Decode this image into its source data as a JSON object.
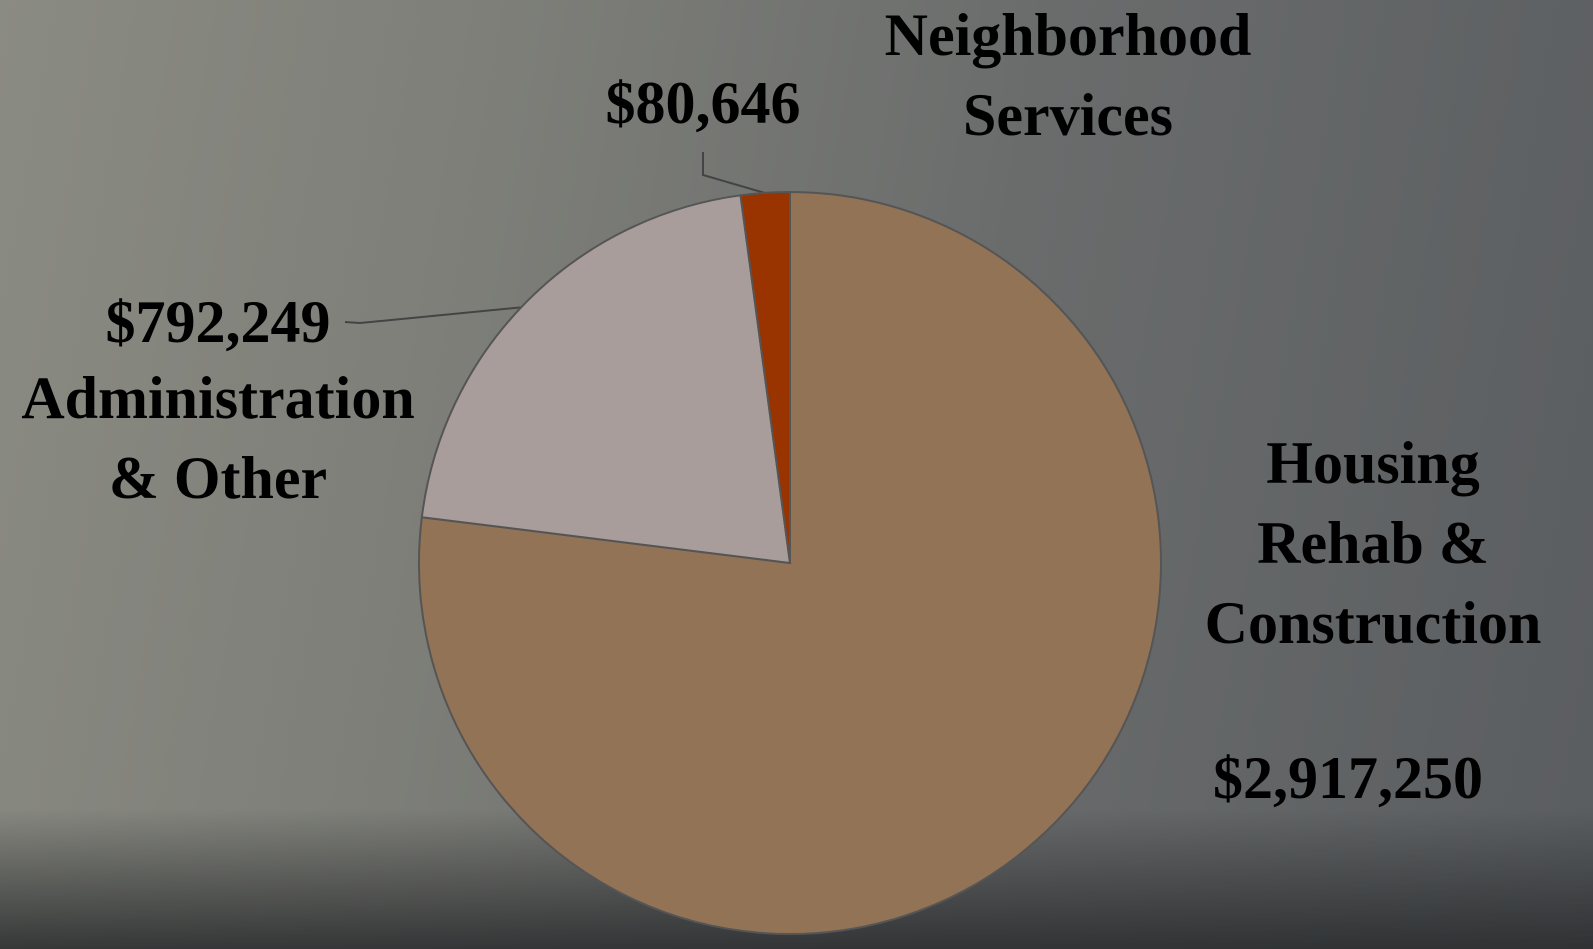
{
  "chart_data": {
    "type": "pie",
    "categories": [
      "Housing Rehab & Construction",
      "Administration & Other",
      "Neighborhood Services"
    ],
    "values": [
      2917250,
      792249,
      80646
    ],
    "value_labels": [
      "$2,917,250",
      "$792,249",
      "$80,646"
    ],
    "colors": [
      "#937356",
      "#a89d9a",
      "#993300"
    ]
  }
}
